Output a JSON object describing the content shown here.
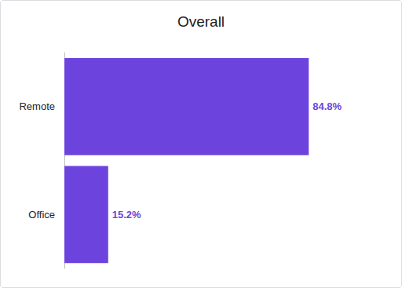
{
  "chart_data": {
    "type": "bar",
    "title": "Overall",
    "orientation": "horizontal",
    "categories": [
      "Remote",
      "Office"
    ],
    "values": [
      84.8,
      15.2
    ],
    "value_labels": [
      "84.8%",
      "15.2%"
    ],
    "color": "#6c44dd",
    "xlim": [
      0,
      100
    ],
    "data_labels": true,
    "grid": false,
    "tick_labels": "y"
  }
}
